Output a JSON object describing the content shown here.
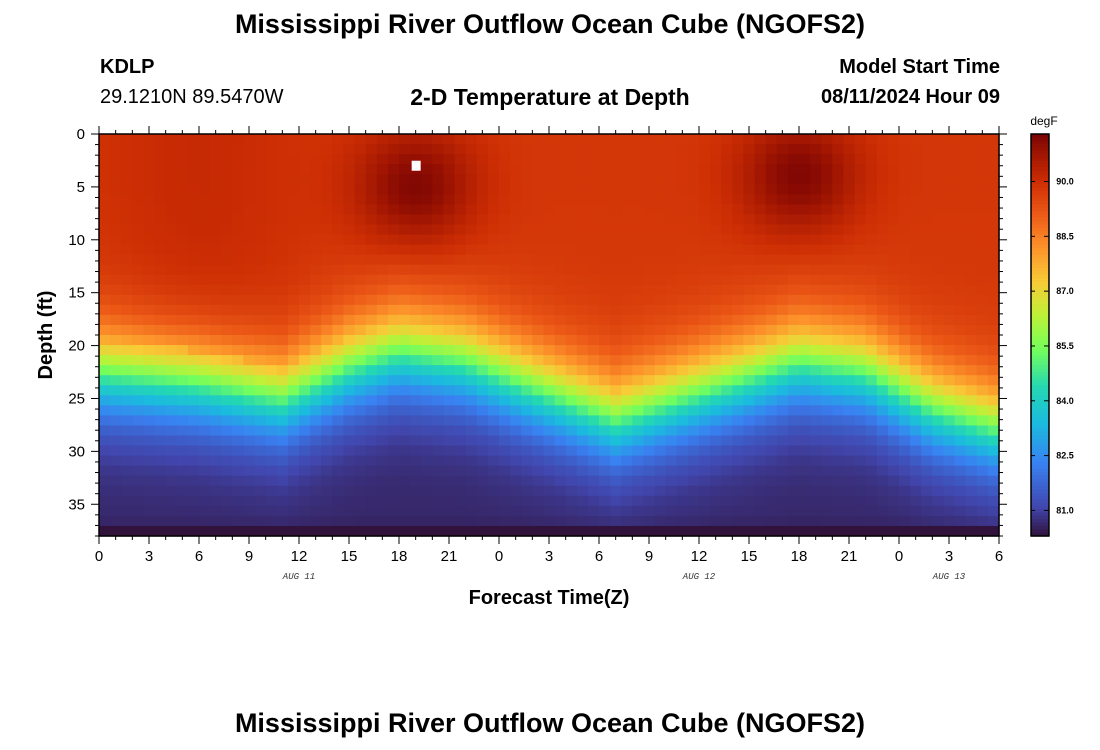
{
  "header": {
    "title": "Mississippi River Outflow Ocean Cube (NGOFS2)",
    "station_id": "KDLP",
    "station_coords": "29.1210N  89.5470W",
    "subtitle": "2-D Temperature at Depth",
    "model_start_label": "Model Start Time",
    "model_start_value": "08/11/2024 Hour 09"
  },
  "footer": {
    "title": "Mississippi River Outflow Ocean Cube (NGOFS2)"
  },
  "chart_data": {
    "type": "heatmap",
    "xlabel": "Forecast Time(Z)",
    "ylabel": "Depth (ft)",
    "x_tick_labels": [
      "0",
      "3",
      "6",
      "9",
      "12",
      "15",
      "18",
      "21",
      "0",
      "3",
      "6",
      "9",
      "12",
      "15",
      "18",
      "21",
      "0",
      "3",
      "6"
    ],
    "x_range_hours": [
      0,
      54
    ],
    "date_labels": [
      {
        "text": "AUG 11",
        "hour": 12
      },
      {
        "text": "AUG 12",
        "hour": 36
      },
      {
        "text": "AUG 13",
        "hour": 51
      }
    ],
    "y_ticks": [
      0,
      5,
      10,
      15,
      20,
      25,
      30,
      35
    ],
    "ylim": [
      0,
      38
    ],
    "y_inverted": true,
    "colorbar": {
      "unit": "degF",
      "ticks": [
        81.0,
        82.5,
        84.0,
        85.5,
        87.0,
        88.5,
        90.0
      ],
      "range": [
        80.3,
        91.3
      ]
    },
    "field": {
      "surface_layer_temp_degF": 89.8,
      "bottom_temp_degF": 80.6,
      "warm_core_max_degF": 91.2,
      "warm_cores": [
        {
          "hour": 19,
          "depth_ft": 5
        },
        {
          "hour": 42,
          "depth_ft": 4
        }
      ],
      "thermocline_depth_ft": [
        {
          "hour": 0,
          "depth": 22.5
        },
        {
          "hour": 6,
          "depth": 23.5
        },
        {
          "hour": 11,
          "depth": 25
        },
        {
          "hour": 15,
          "depth": 22
        },
        {
          "hour": 18,
          "depth": 20.5
        },
        {
          "hour": 22,
          "depth": 21.5
        },
        {
          "hour": 26,
          "depth": 24
        },
        {
          "hour": 31,
          "depth": 27
        },
        {
          "hour": 36,
          "depth": 24.5
        },
        {
          "hour": 42,
          "depth": 21.5
        },
        {
          "hour": 46,
          "depth": 22.5
        },
        {
          "hour": 50,
          "depth": 26
        },
        {
          "hour": 54,
          "depth": 28
        }
      ]
    },
    "marker": {
      "hour": 19,
      "depth_ft": 3,
      "color": "#ffffff"
    }
  }
}
